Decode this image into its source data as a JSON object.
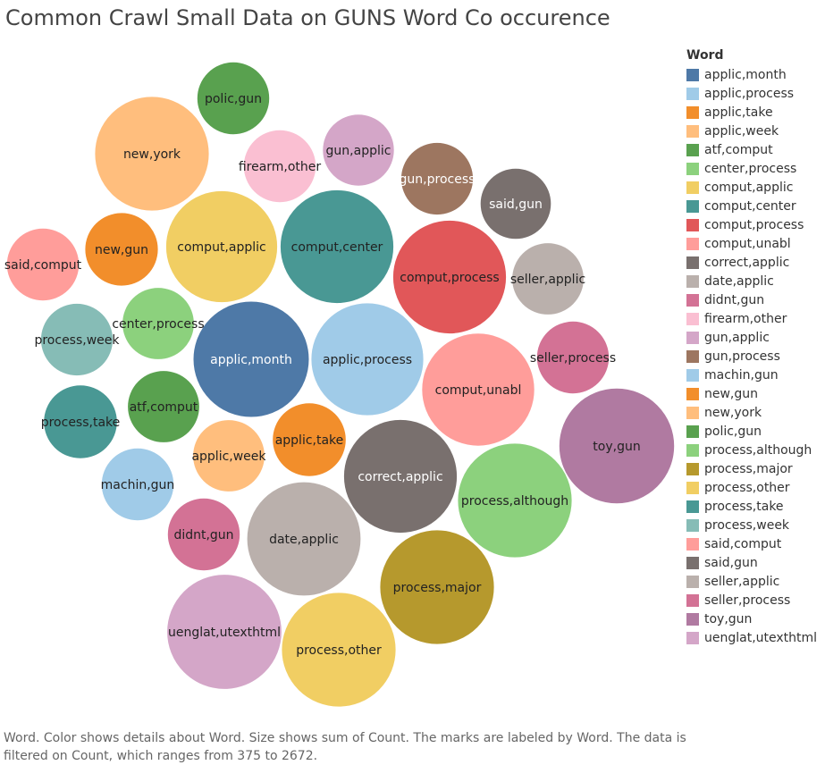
{
  "page": {
    "title": "Common Crawl Small Data on GUNS Word Co occurence",
    "footnote": "Word.  Color shows details about Word.  Size shows sum of Count.  The marks are labeled by Word. The data is filtered on Count, which ranges from 375 to 2672."
  },
  "chart_data": {
    "type": "bubble",
    "title": "Common Crawl Small Data on GUNS Word Co occurence",
    "size_measure": "Count",
    "count_range": [
      375,
      2672
    ],
    "legend_title": "Word",
    "legend_placement": "right",
    "items": [
      {
        "word": "applic,month",
        "count": 2672,
        "color": "#4e79a7"
      },
      {
        "word": "applic,process",
        "count": 2520,
        "color": "#a0cbe8"
      },
      {
        "word": "applic,take",
        "count": 1080,
        "color": "#f28e2b"
      },
      {
        "word": "applic,week",
        "count": 1030,
        "color": "#ffbe7d"
      },
      {
        "word": "atf,comput",
        "count": 1030,
        "color": "#59a14f"
      },
      {
        "word": "center,process",
        "count": 1030,
        "color": "#8cd17d"
      },
      {
        "word": "comput,applic",
        "count": 2480,
        "color": "#f1ce63"
      },
      {
        "word": "comput,center",
        "count": 2560,
        "color": "#499894"
      },
      {
        "word": "comput,process",
        "count": 2560,
        "color": "#e15759"
      },
      {
        "word": "comput,unabl",
        "count": 2530,
        "color": "#ff9d9a"
      },
      {
        "word": "correct,applic",
        "count": 2560,
        "color": "#79706e"
      },
      {
        "word": "date,applic",
        "count": 2580,
        "color": "#bab0ac"
      },
      {
        "word": "didnt,gun",
        "count": 1050,
        "color": "#d37295"
      },
      {
        "word": "firearm,other",
        "count": 1050,
        "color": "#fabfd2"
      },
      {
        "word": "gun,applic",
        "count": 1020,
        "color": "#d4a6c8"
      },
      {
        "word": "gun,process",
        "count": 1040,
        "color": "#9d7660"
      },
      {
        "word": "machin,gun",
        "count": 1050,
        "color": "#a0cbe8"
      },
      {
        "word": "new,gun",
        "count": 1070,
        "color": "#f28e2b"
      },
      {
        "word": "new,york",
        "count": 2600,
        "color": "#ffbe7d"
      },
      {
        "word": "polic,gun",
        "count": 1050,
        "color": "#59a14f"
      },
      {
        "word": "process,although",
        "count": 2600,
        "color": "#8cd17d"
      },
      {
        "word": "process,major",
        "count": 2600,
        "color": "#b6992d"
      },
      {
        "word": "process,other",
        "count": 2600,
        "color": "#f1ce63"
      },
      {
        "word": "process,take",
        "count": 1080,
        "color": "#499894"
      },
      {
        "word": "process,week",
        "count": 1040,
        "color": "#86bcb6"
      },
      {
        "word": "said,comput",
        "count": 1050,
        "color": "#ff9d9a"
      },
      {
        "word": "said,gun",
        "count": 1000,
        "color": "#79706e"
      },
      {
        "word": "seller,applic",
        "count": 1030,
        "color": "#bab0ac"
      },
      {
        "word": "seller,process",
        "count": 1050,
        "color": "#d37295"
      },
      {
        "word": "toy,gun",
        "count": 2650,
        "color": "#b07aa1"
      },
      {
        "word": "uenglat,utexthtml",
        "count": 2620,
        "color": "#d4a6c8"
      }
    ]
  }
}
